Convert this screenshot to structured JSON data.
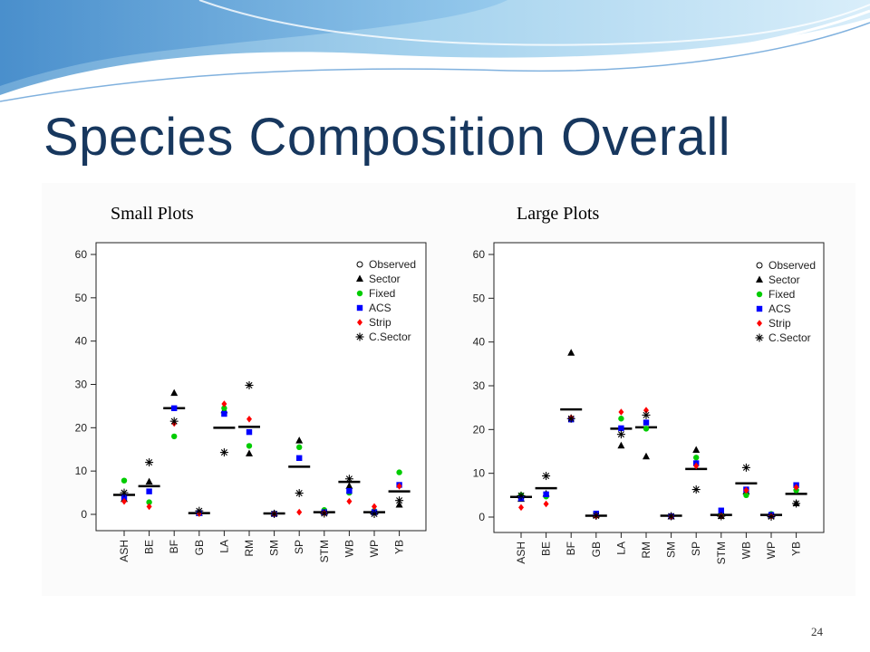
{
  "slide": {
    "title": "Species Composition Overall",
    "page_number": "24"
  },
  "colors": {
    "title": "#17375e",
    "observed": "#000000",
    "sector": "#000000",
    "fixed": "#00cc00",
    "acs": "#0000ff",
    "strip": "#ff0000",
    "c_sector": "#000000"
  },
  "chart_data": [
    {
      "type": "scatter",
      "title": "Small Plots",
      "categories": [
        "ASH",
        "BE",
        "BF",
        "GB",
        "LA",
        "RM",
        "SM",
        "SP",
        "STM",
        "WB",
        "WP",
        "YB"
      ],
      "ylim": [
        0,
        60
      ],
      "yticks": [
        0,
        10,
        20,
        30,
        40,
        50,
        60
      ],
      "grid": false,
      "legend_position": "top-right",
      "series": [
        {
          "name": "Observed",
          "marker": "hline",
          "values": [
            4.5,
            6.5,
            24.5,
            0.3,
            20,
            20.2,
            0.2,
            11,
            0.5,
            7.5,
            0.5,
            5.3
          ]
        },
        {
          "name": "Sector",
          "marker": "triangle",
          "values": [
            3.5,
            7.5,
            28,
            0.3,
            24,
            14,
            0.2,
            17,
            0.5,
            6.5,
            0.5,
            2.2
          ]
        },
        {
          "name": "Fixed",
          "marker": "circle",
          "values": [
            7.8,
            2.8,
            18,
            0.2,
            24.5,
            15.8,
            0.2,
            15.5,
            1,
            5,
            0.8,
            9.7
          ]
        },
        {
          "name": "ACS",
          "marker": "square",
          "values": [
            4,
            5.3,
            24.5,
            0.3,
            23.2,
            19,
            0.1,
            13,
            0.5,
            5.4,
            0.5,
            6.8
          ]
        },
        {
          "name": "Strip",
          "marker": "diamond",
          "values": [
            3,
            1.8,
            21,
            0.2,
            25.5,
            22,
            0.1,
            0.5,
            0.3,
            3,
            1.8,
            6.5
          ]
        },
        {
          "name": "C.Sector",
          "marker": "asterisk",
          "values": [
            5,
            12,
            21.5,
            0.8,
            14.3,
            29.8,
            0.1,
            4.9,
            0.2,
            8.2,
            0.1,
            3.2
          ]
        }
      ]
    },
    {
      "type": "scatter",
      "title": "Large Plots",
      "categories": [
        "ASH",
        "BE",
        "BF",
        "GB",
        "LA",
        "RM",
        "SM",
        "SP",
        "STM",
        "WB",
        "WP",
        "YB"
      ],
      "ylim": [
        0,
        60
      ],
      "yticks": [
        0,
        10,
        20,
        30,
        40,
        50,
        60
      ],
      "grid": false,
      "legend_position": "top-right",
      "series": [
        {
          "name": "Observed",
          "marker": "hline",
          "values": [
            4.6,
            6.6,
            24.6,
            0.3,
            20.2,
            20.5,
            0.3,
            11,
            0.5,
            7.7,
            0.5,
            5.3
          ]
        },
        {
          "name": "Sector",
          "marker": "triangle",
          "values": [
            4.1,
            5.3,
            37.5,
            0.5,
            16.3,
            13.8,
            0.1,
            15.3,
            0.2,
            5.8,
            0.3,
            3.1
          ]
        },
        {
          "name": "Fixed",
          "marker": "circle",
          "values": [
            5,
            4.7,
            22.5,
            0.7,
            22.5,
            20.2,
            0.2,
            13.6,
            0.7,
            5,
            0.7,
            6.1
          ]
        },
        {
          "name": "ACS",
          "marker": "square",
          "values": [
            4.3,
            5.2,
            22.3,
            0.8,
            20.3,
            21.6,
            0.2,
            12.3,
            1.5,
            6.3,
            0.5,
            7.3
          ]
        },
        {
          "name": "Strip",
          "marker": "diamond",
          "values": [
            2.2,
            3,
            22.7,
            0.2,
            24,
            24.4,
            0.1,
            11.7,
            0.3,
            6.1,
            0.2,
            6.8
          ]
        },
        {
          "name": "C.Sector",
          "marker": "asterisk",
          "values": [
            4.9,
            9.4,
            22.5,
            0.3,
            18.9,
            23.3,
            0.2,
            6.3,
            0.2,
            11.3,
            0.1,
            3.1
          ]
        }
      ]
    }
  ]
}
